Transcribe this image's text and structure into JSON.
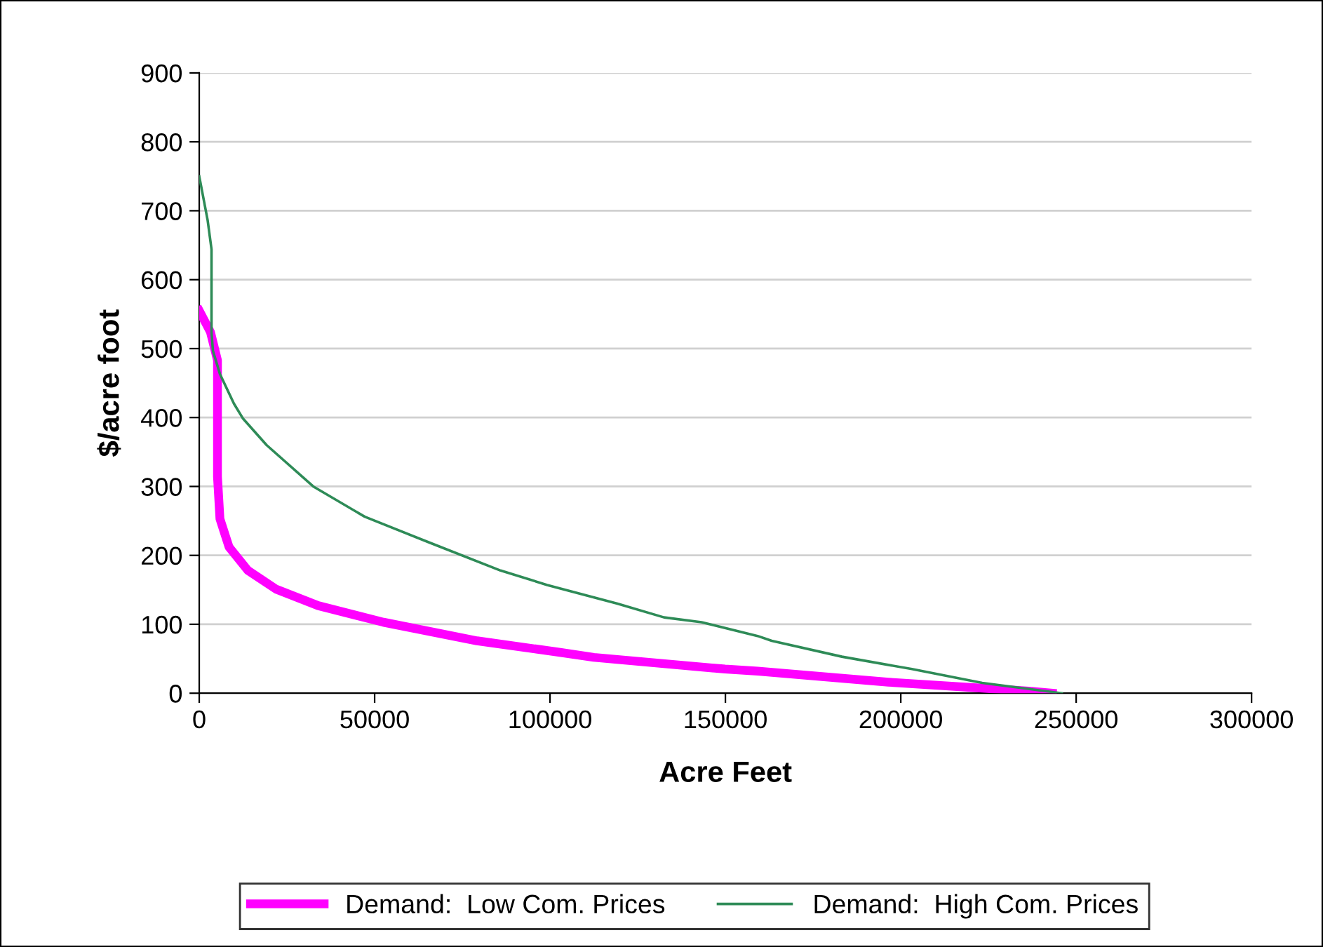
{
  "chart_data": {
    "type": "line",
    "xlabel": "Acre Feet",
    "ylabel": "$/acre foot",
    "xlim": [
      0,
      300000
    ],
    "xticks": [
      0,
      50000,
      100000,
      150000,
      200000,
      250000,
      300000
    ],
    "ylim": [
      0,
      900
    ],
    "yticks": [
      0,
      100,
      200,
      300,
      400,
      500,
      600,
      700,
      800,
      900
    ],
    "grid": "y",
    "legend": "bottom",
    "marker": "none",
    "line_style": "solid",
    "series": [
      {
        "name": "Demand:  Low Com. Prices",
        "color": "#ff00ff",
        "x": [
          0,
          3200,
          5200,
          5200,
          5900,
          8500,
          13900,
          21900,
          33900,
          52500,
          79200,
          103200,
          112500,
          149900,
          159200,
          196500,
          236500,
          243200
        ],
        "values": [
          555,
          524,
          483,
          314,
          253,
          212,
          178,
          151,
          127,
          103,
          76,
          59,
          52,
          35,
          32,
          16,
          3,
          0
        ]
      },
      {
        "name": "Demand:  High Com. Prices",
        "color": "#2e8b57",
        "x": [
          0,
          2400,
          3500,
          3500,
          3900,
          5900,
          9900,
          12400,
          19200,
          32500,
          47200,
          65900,
          85900,
          99200,
          119200,
          132500,
          143200,
          159200,
          163200,
          183200,
          203200,
          223200,
          245900
        ],
        "values": [
          750,
          686,
          644,
          523,
          497,
          463,
          420,
          399,
          360,
          300,
          256,
          218,
          178,
          157,
          130,
          110,
          103,
          83,
          76,
          53,
          35,
          15,
          0
        ]
      }
    ]
  }
}
